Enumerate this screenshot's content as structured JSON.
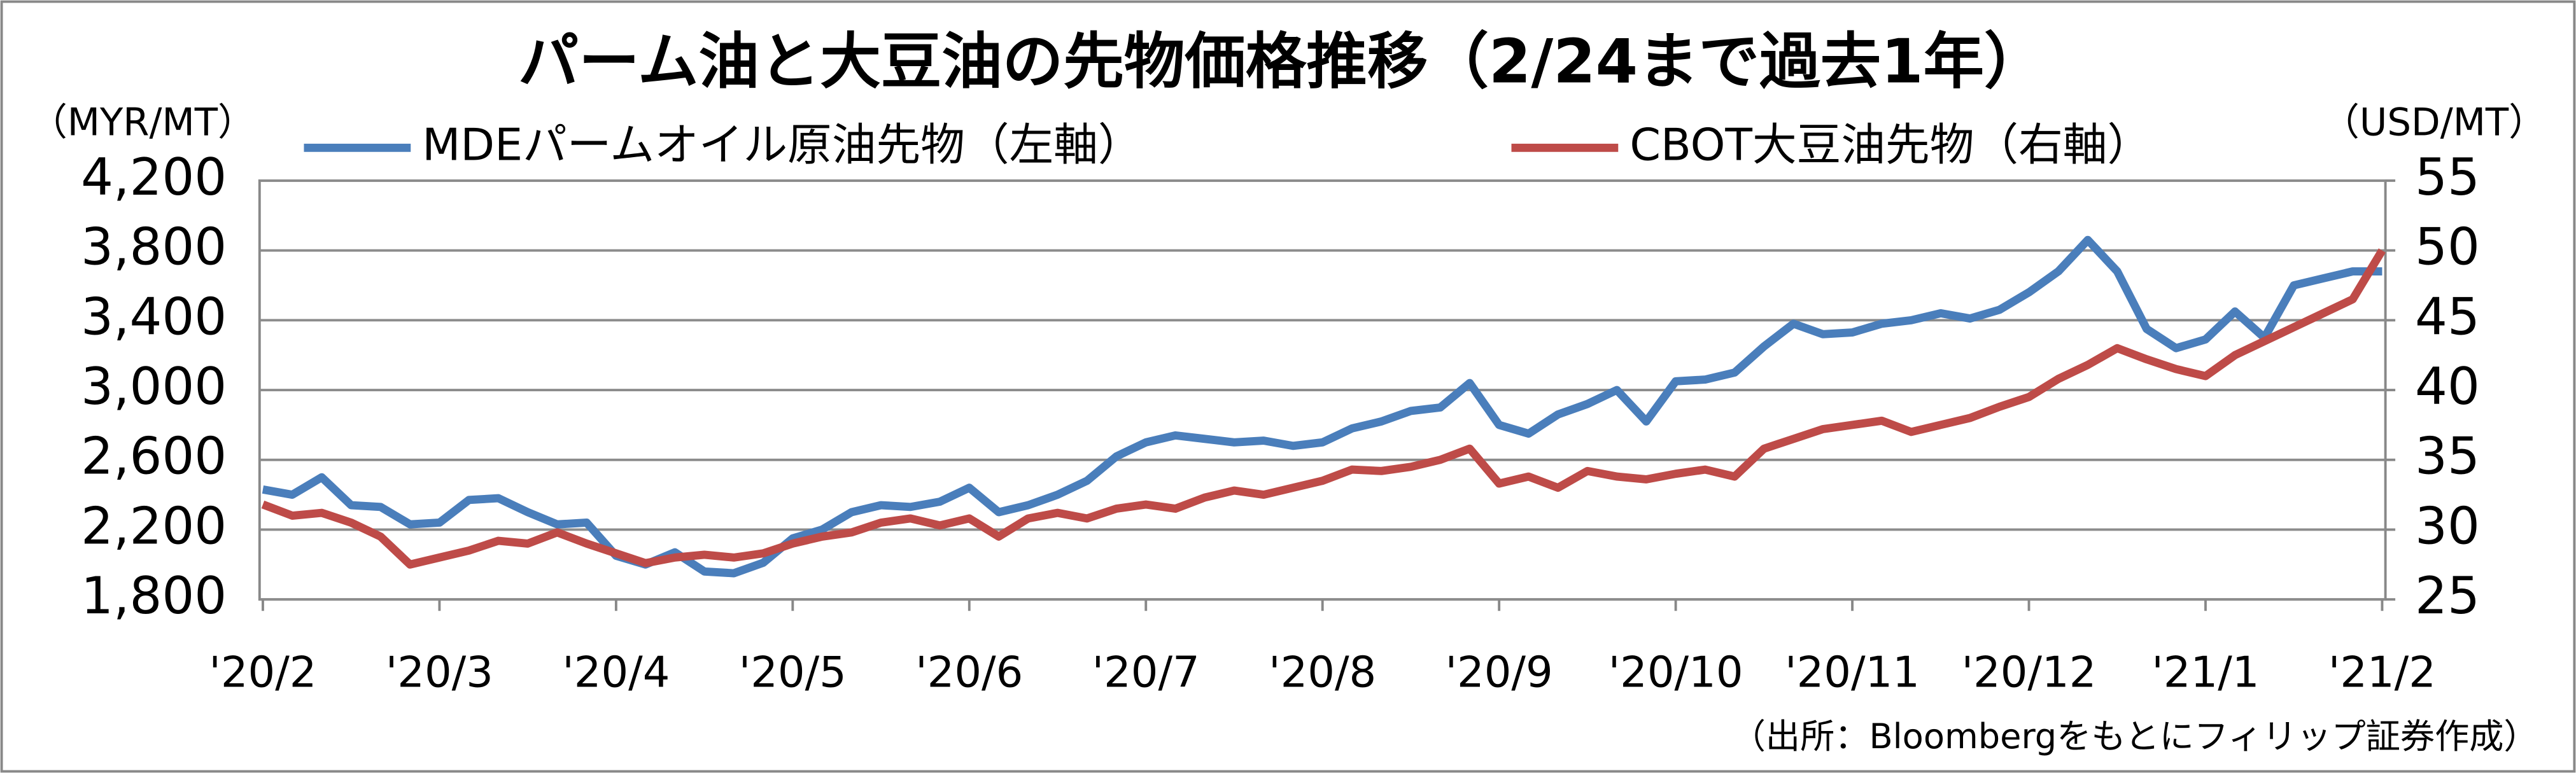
{
  "chart_data": {
    "type": "line",
    "title": "パーム油と大豆油の先物価格推移（2/24まで過去1年）",
    "ylabel": "（MYR/MT）",
    "y2label": "（USD/MT）",
    "source": "（出所：Bloombergをもとにフィリップ証券作成）",
    "categories": [
      "'20/2",
      null,
      null,
      null,
      null,
      null,
      "'20/3",
      null,
      null,
      null,
      null,
      null,
      "'20/4",
      null,
      null,
      null,
      null,
      null,
      "'20/5",
      null,
      null,
      null,
      null,
      null,
      "'20/6",
      null,
      null,
      null,
      null,
      null,
      "'20/7",
      null,
      null,
      null,
      null,
      null,
      "'20/8",
      null,
      null,
      null,
      null,
      null,
      "'20/9",
      null,
      null,
      null,
      null,
      null,
      "'20/10",
      null,
      null,
      null,
      null,
      null,
      "'20/11",
      null,
      null,
      null,
      null,
      null,
      "'20/12",
      null,
      null,
      null,
      null,
      null,
      "'21/1",
      null,
      null,
      null,
      null,
      null,
      "'21/2"
    ],
    "series": [
      {
        "name": "MDEパームオイル原油先物（左軸）",
        "color": "#4a7ebb",
        "axis": "y",
        "values": [
          2430,
          2400,
          2500,
          2340,
          2330,
          2230,
          2240,
          2370,
          2380,
          2300,
          2230,
          2240,
          2050,
          2000,
          2070,
          1960,
          1950,
          2010,
          2150,
          2200,
          2300,
          2340,
          2330,
          2360,
          2440,
          2300,
          2340,
          2400,
          2480,
          2620,
          2700,
          2740,
          2720,
          2700,
          2710,
          2680,
          2700,
          2780,
          2820,
          2880,
          2900,
          3040,
          2800,
          2750,
          2860,
          2920,
          3000,
          2820,
          3050,
          3060,
          3100,
          3250,
          3380,
          3320,
          3330,
          3380,
          3400,
          3440,
          3410,
          3460,
          3560,
          3680,
          3860,
          3680,
          3350,
          3240,
          3290,
          3450,
          3300,
          3600,
          3640,
          3680,
          3680
        ]
      },
      {
        "name": "CBOT大豆油先物（右軸）",
        "color": "#be4b48",
        "axis": "y2",
        "values": [
          31.8,
          31.0,
          31.2,
          30.5,
          29.5,
          27.5,
          28.0,
          28.5,
          29.2,
          29.0,
          29.8,
          29.0,
          28.3,
          27.6,
          28.0,
          28.2,
          28.0,
          28.3,
          29.0,
          29.5,
          29.8,
          30.5,
          30.8,
          30.3,
          30.8,
          29.5,
          30.8,
          31.2,
          30.8,
          31.5,
          31.8,
          31.5,
          32.3,
          32.8,
          32.5,
          33.0,
          33.5,
          34.3,
          34.2,
          34.5,
          35.0,
          35.8,
          33.3,
          33.8,
          33.0,
          34.2,
          33.8,
          33.6,
          34.0,
          34.3,
          33.8,
          35.8,
          36.5,
          37.2,
          37.5,
          37.8,
          37.0,
          37.5,
          38.0,
          38.8,
          39.5,
          40.8,
          41.8,
          43.0,
          42.2,
          41.5,
          41.0,
          42.5,
          43.5,
          44.5,
          45.5,
          46.5,
          50.0
        ]
      }
    ],
    "ylim": [
      1800,
      4200
    ],
    "yticks": [
      {
        "value": 1800,
        "label": "1,800"
      },
      {
        "value": 2200,
        "label": "2,200"
      },
      {
        "value": 2600,
        "label": "2,600"
      },
      {
        "value": 3000,
        "label": "3,000"
      },
      {
        "value": 3400,
        "label": "3,400"
      },
      {
        "value": 3800,
        "label": "3,800"
      },
      {
        "value": 4200,
        "label": "4,200"
      }
    ],
    "y2lim": [
      25,
      55
    ],
    "y2ticks": [
      25,
      30,
      35,
      40,
      45,
      50,
      55
    ],
    "grid": true,
    "legend": "top"
  }
}
